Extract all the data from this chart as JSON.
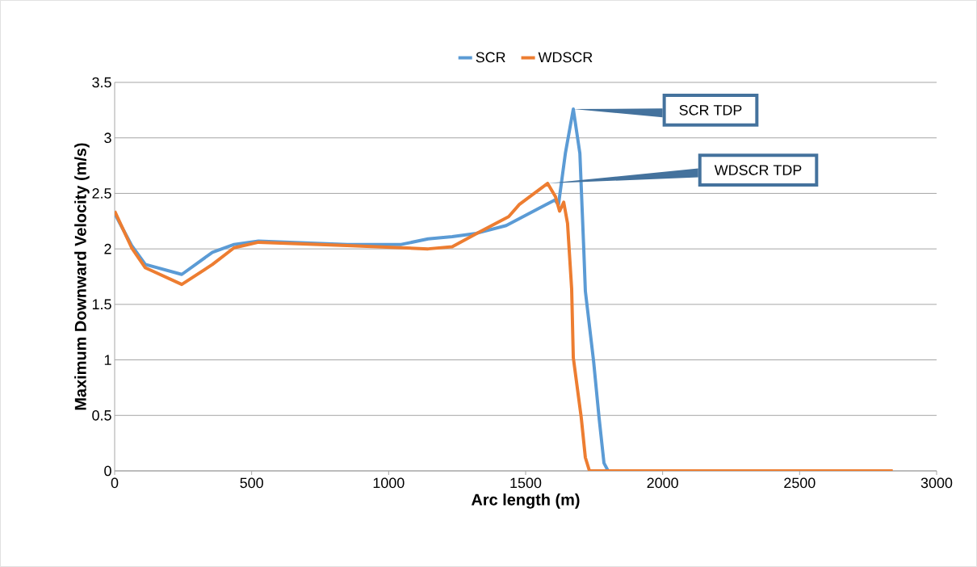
{
  "chart_data": {
    "type": "line",
    "xlabel": "Arc length (m)",
    "ylabel": "Maximum Downward Velocity (m/s)",
    "xlim": [
      0,
      3000
    ],
    "ylim": [
      0,
      3.5
    ],
    "xticks": [
      0,
      500,
      1000,
      1500,
      2000,
      2500,
      3000
    ],
    "yticks": [
      0,
      0.5,
      1,
      1.5,
      2,
      2.5,
      3,
      3.5
    ],
    "grid": "y",
    "legend": "top",
    "line_style": "solid",
    "series": [
      {
        "name": "SCR",
        "color": "#5b9bd5",
        "x": [
          0,
          62,
          112,
          245,
          357,
          436,
          525,
          849,
          1046,
          1144,
          1232,
          1320,
          1429,
          1606,
          1620,
          1645,
          1674,
          1698,
          1712,
          1718,
          1748,
          1768,
          1786,
          1801,
          2830
        ],
        "values": [
          2.32,
          2.03,
          1.86,
          1.77,
          1.97,
          2.04,
          2.07,
          2.04,
          2.04,
          2.09,
          2.11,
          2.14,
          2.21,
          2.44,
          2.4,
          2.86,
          3.26,
          2.86,
          2.01,
          1.62,
          0.99,
          0.48,
          0.07,
          0,
          0
        ]
      },
      {
        "name": "WDSCR",
        "color": "#ed7d31",
        "x": [
          0,
          62,
          112,
          245,
          357,
          436,
          525,
          849,
          1046,
          1144,
          1232,
          1330,
          1438,
          1477,
          1580,
          1609,
          1624,
          1639,
          1653,
          1668,
          1674,
          1703,
          1718,
          1733,
          2840
        ],
        "values": [
          2.34,
          2.01,
          1.83,
          1.68,
          1.86,
          2.01,
          2.06,
          2.03,
          2.01,
          2.0,
          2.02,
          2.15,
          2.29,
          2.4,
          2.59,
          2.47,
          2.34,
          2.42,
          2.23,
          1.64,
          1.02,
          0.48,
          0.12,
          0,
          0
        ]
      }
    ],
    "annotations": [
      {
        "text": "SCR TDP",
        "x": 1674,
        "y": 3.26
      },
      {
        "text": "WDSCR TDP",
        "x": 1580,
        "y": 2.59
      }
    ]
  }
}
